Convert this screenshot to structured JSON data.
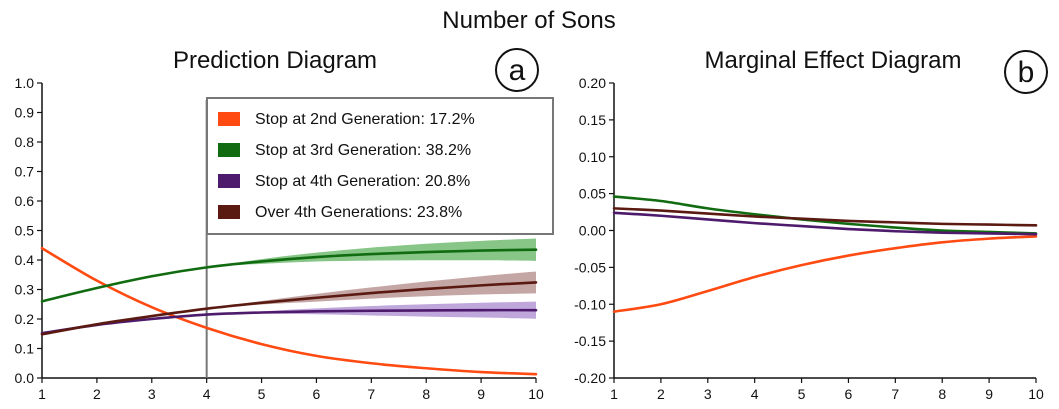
{
  "figure": {
    "title": "Number of Sons"
  },
  "chart_data": [
    {
      "type": "line",
      "title": "Prediction Diagram",
      "badge": "a",
      "xlabel": "",
      "ylabel": "",
      "xlim": [
        1,
        10
      ],
      "ylim": [
        0,
        1
      ],
      "x_ticks": [
        "1",
        "2",
        "3",
        "4",
        "5",
        "6",
        "7",
        "8",
        "9",
        "10"
      ],
      "y_ticks": [
        "0.0",
        "0.1",
        "0.2",
        "0.3",
        "0.4",
        "0.5",
        "0.6",
        "0.7",
        "0.8",
        "0.9",
        "1.0"
      ],
      "legend": {
        "placement": "top-right"
      },
      "reference_line_x": 4,
      "x": [
        1,
        2,
        3,
        4,
        5,
        6,
        7,
        8,
        9,
        10
      ],
      "series": [
        {
          "name": "Stop at 2nd Generation: 17.2%",
          "color": "#ff4a12",
          "values": [
            0.44,
            0.33,
            0.24,
            0.17,
            0.115,
            0.075,
            0.05,
            0.033,
            0.02,
            0.013
          ],
          "band_halfwidth": [
            0,
            0,
            0,
            0,
            0,
            0,
            0,
            0,
            0,
            0
          ]
        },
        {
          "name": "Stop at 3rd Generation: 38.2%",
          "color": "#116b11",
          "band_color": "#5fb35f",
          "values": [
            0.26,
            0.305,
            0.345,
            0.375,
            0.395,
            0.41,
            0.42,
            0.427,
            0.432,
            0.435
          ],
          "band_halfwidth": [
            0,
            0,
            0,
            0,
            0.008,
            0.015,
            0.022,
            0.028,
            0.033,
            0.038
          ]
        },
        {
          "name": "Stop at 4th Generation: 20.8%",
          "color": "#4e1a6b",
          "band_color": "#a98ad0",
          "values": [
            0.152,
            0.18,
            0.2,
            0.215,
            0.222,
            0.226,
            0.228,
            0.229,
            0.23,
            0.23
          ],
          "band_halfwidth": [
            0,
            0,
            0,
            0,
            0.004,
            0.01,
            0.016,
            0.021,
            0.025,
            0.029
          ]
        },
        {
          "name": "Over 4th Generations: 23.8%",
          "color": "#5a1a12",
          "band_color": "#b08a85",
          "values": [
            0.148,
            0.182,
            0.21,
            0.235,
            0.255,
            0.272,
            0.288,
            0.302,
            0.314,
            0.324
          ],
          "band_halfwidth": [
            0,
            0,
            0,
            0,
            0.006,
            0.013,
            0.019,
            0.025,
            0.031,
            0.037
          ]
        }
      ]
    },
    {
      "type": "line",
      "title": "Marginal Effect Diagram",
      "badge": "b",
      "xlabel": "",
      "ylabel": "",
      "xlim": [
        1,
        10
      ],
      "ylim": [
        -0.2,
        0.2
      ],
      "x_ticks": [
        "1",
        "2",
        "3",
        "4",
        "5",
        "6",
        "7",
        "8",
        "9",
        "10"
      ],
      "y_ticks": [
        "-0.20",
        "-0.15",
        "-0.10",
        "-0.05",
        "0.00",
        "0.05",
        "0.10",
        "0.15",
        "0.20"
      ],
      "x": [
        1,
        2,
        3,
        4,
        5,
        6,
        7,
        8,
        9,
        10
      ],
      "series": [
        {
          "color": "#ff4a12",
          "values": [
            -0.11,
            -0.1,
            -0.082,
            -0.063,
            -0.047,
            -0.034,
            -0.024,
            -0.016,
            -0.011,
            -0.008
          ]
        },
        {
          "color": "#116b11",
          "values": [
            0.046,
            0.04,
            0.03,
            0.022,
            0.015,
            0.009,
            0.004,
            0.0,
            -0.002,
            -0.004
          ]
        },
        {
          "color": "#4e1a6b",
          "values": [
            0.024,
            0.02,
            0.015,
            0.01,
            0.006,
            0.002,
            -0.001,
            -0.003,
            -0.004,
            -0.005
          ]
        },
        {
          "color": "#5a1a12",
          "values": [
            0.03,
            0.027,
            0.023,
            0.019,
            0.016,
            0.013,
            0.011,
            0.009,
            0.008,
            0.007
          ]
        }
      ]
    }
  ]
}
